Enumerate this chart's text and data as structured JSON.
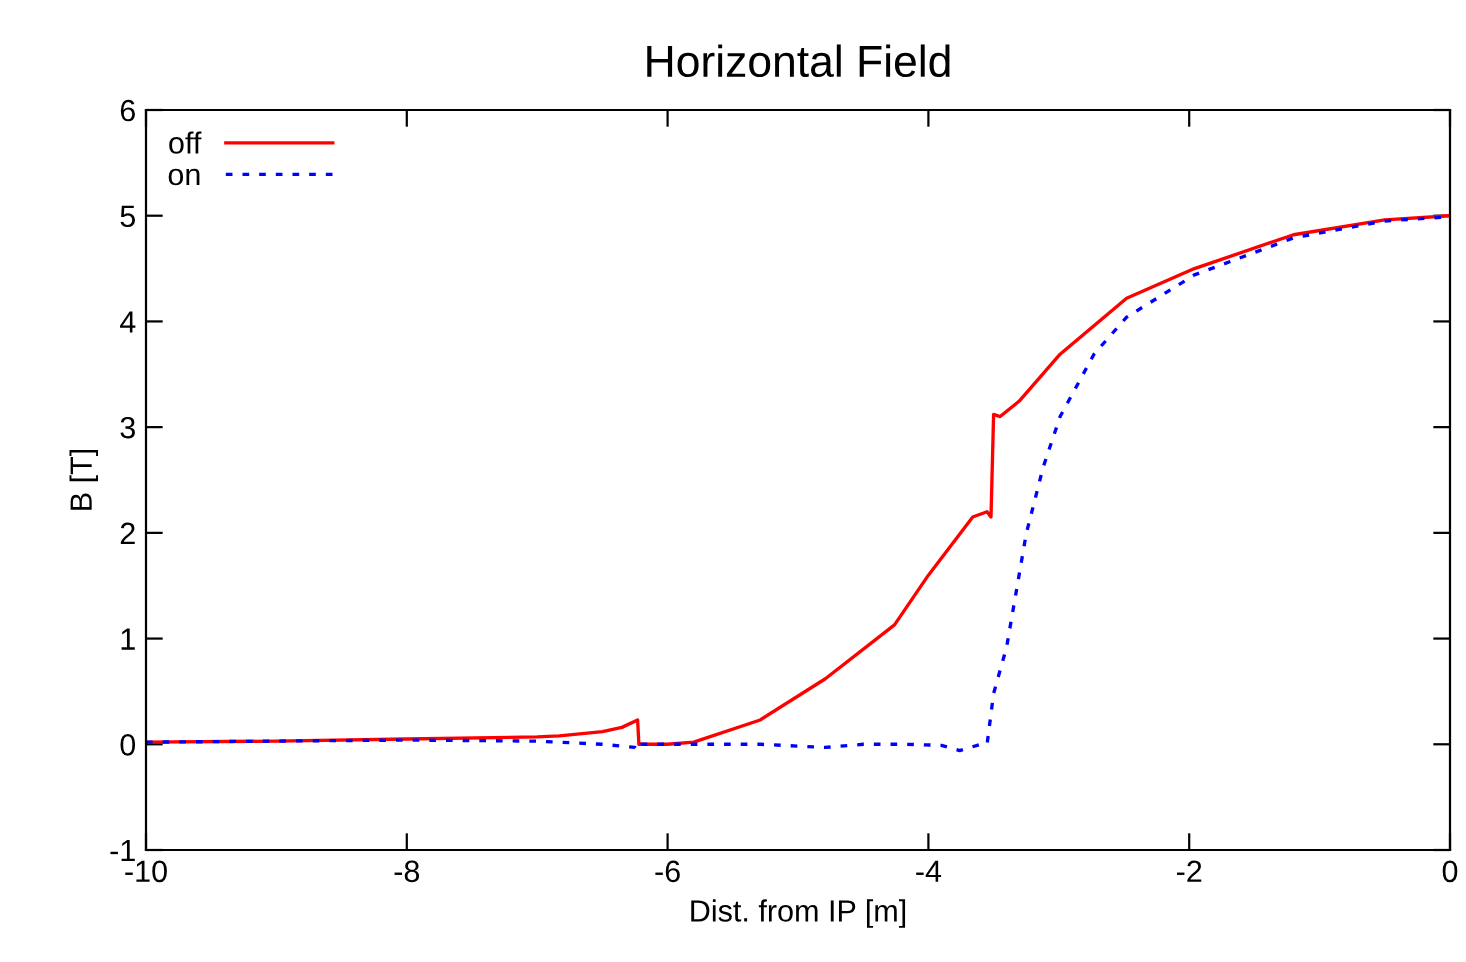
{
  "chart_data": {
    "type": "line",
    "title": "Horizontal Field",
    "xlabel": "Dist. from IP [m]",
    "ylabel": "B [T]",
    "xlim": [
      -10,
      0
    ],
    "xticks": [
      -10,
      -8,
      -6,
      -4,
      -2,
      0
    ],
    "ylim": [
      -1,
      6
    ],
    "yticks": [
      -1,
      0,
      1,
      2,
      3,
      4,
      5,
      6
    ],
    "grid": false,
    "legend": "top left",
    "series": [
      {
        "name": "off",
        "color": "#ff0000",
        "line_style": "solid",
        "x": [
          -10,
          -9,
          -8,
          -7,
          -6.83,
          -6.5,
          -6.35,
          -6.23,
          -6.22,
          -6.0,
          -5.8,
          -5.29,
          -4.79,
          -4.26,
          -4.0,
          -3.66,
          -3.55,
          -3.52,
          -3.5,
          -3.45,
          -3.3,
          -2.99,
          -2.48,
          -1.96,
          -1.2,
          -0.5,
          0
        ],
        "values": [
          0.02,
          0.03,
          0.05,
          0.07,
          0.08,
          0.12,
          0.16,
          0.23,
          0.0,
          0.0,
          0.02,
          0.23,
          0.62,
          1.13,
          1.6,
          2.15,
          2.2,
          2.15,
          3.12,
          3.1,
          3.25,
          3.69,
          4.22,
          4.5,
          4.82,
          4.96,
          5.0
        ]
      },
      {
        "name": "on",
        "color": "#0000ff",
        "line_style": "dotted",
        "x": [
          -10,
          -9,
          -8,
          -7,
          -6.5,
          -6.25,
          -6.23,
          -6.2,
          -5.8,
          -5.29,
          -4.79,
          -4.5,
          -4.17,
          -3.9,
          -3.76,
          -3.6,
          -3.55,
          -3.5,
          -3.4,
          -3.25,
          -3.12,
          -2.99,
          -2.73,
          -2.48,
          -1.96,
          -1.2,
          -0.5,
          0
        ],
        "values": [
          0.02,
          0.03,
          0.04,
          0.03,
          0.0,
          -0.03,
          -0.06,
          0.0,
          0.0,
          0.0,
          -0.03,
          0.0,
          0.0,
          -0.01,
          -0.06,
          0.0,
          0.0,
          0.48,
          0.92,
          1.99,
          2.62,
          3.1,
          3.69,
          4.04,
          4.44,
          4.79,
          4.95,
          4.99
        ]
      }
    ]
  }
}
